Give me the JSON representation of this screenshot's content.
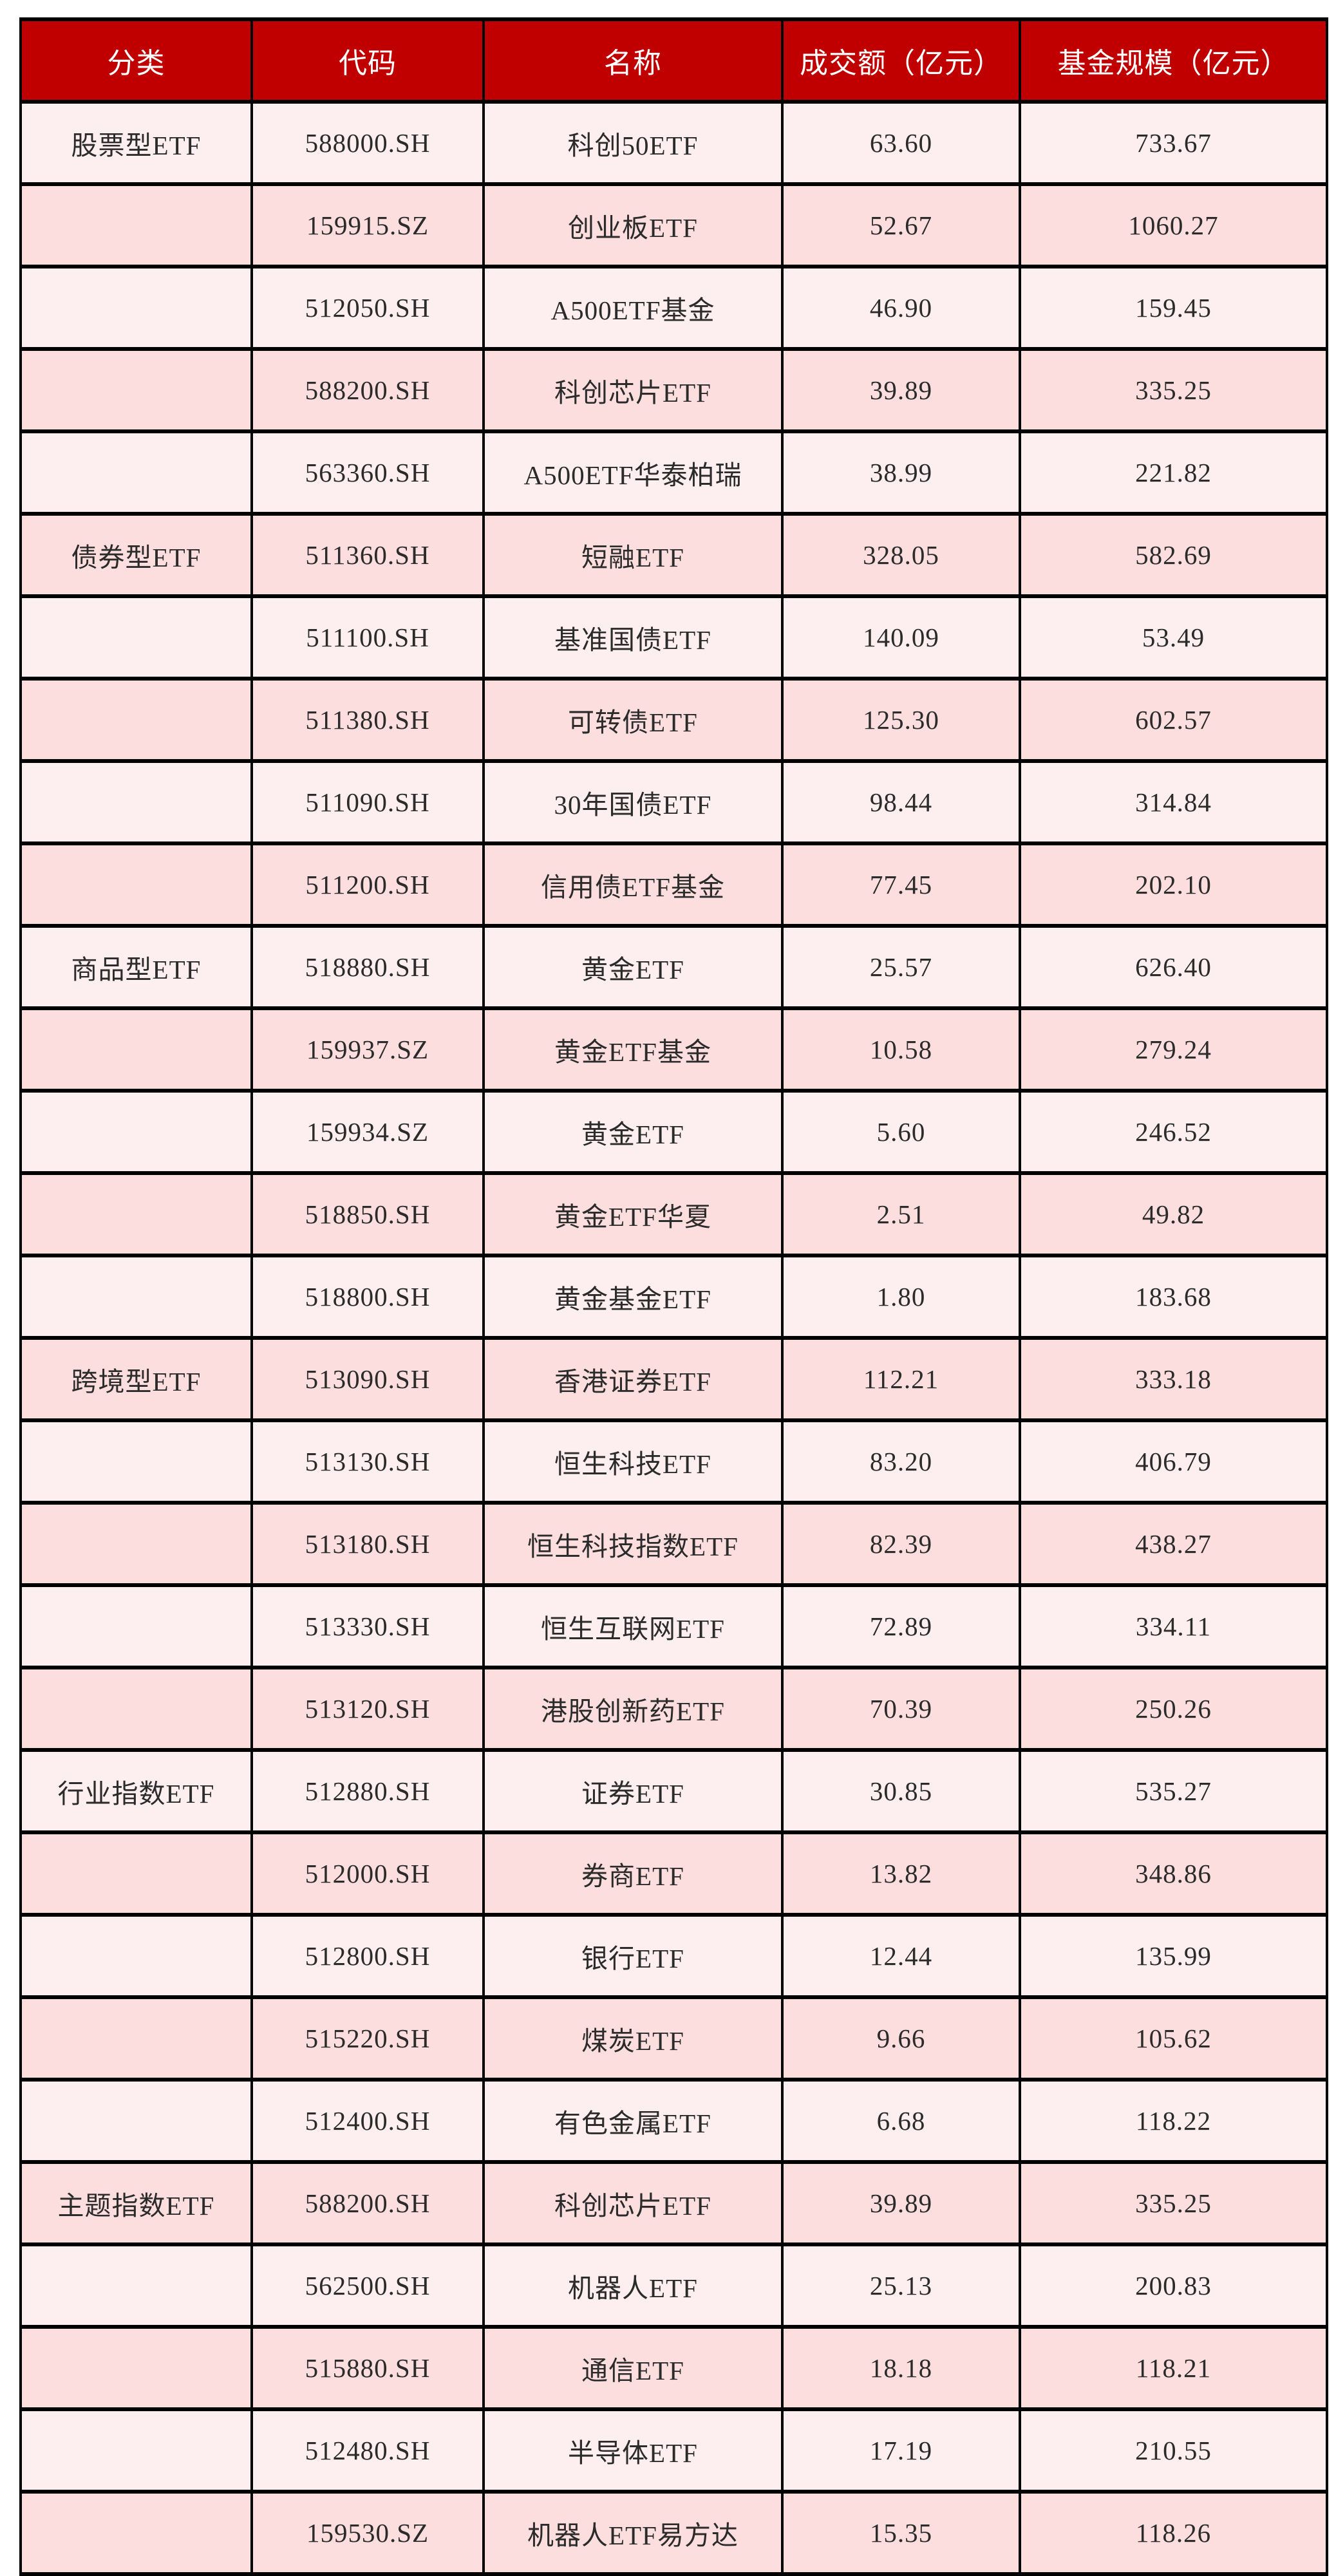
{
  "colors": {
    "header_bg": "#c00000",
    "header_text": "#ffffff",
    "row_light": "#fdefef",
    "row_dark": "#fcdede",
    "border": "#000000",
    "body_text": "#2b2b2b"
  },
  "chart_data": {
    "type": "table",
    "title": "",
    "columns": [
      "分类",
      "代码",
      "名称",
      "成交额（亿元）",
      "基金规模（亿元）"
    ],
    "rows": [
      [
        "股票型ETF",
        "588000.SH",
        "科创50ETF",
        "63.60",
        "733.67"
      ],
      [
        "",
        "159915.SZ",
        "创业板ETF",
        "52.67",
        "1060.27"
      ],
      [
        "",
        "512050.SH",
        "A500ETF基金",
        "46.90",
        "159.45"
      ],
      [
        "",
        "588200.SH",
        "科创芯片ETF",
        "39.89",
        "335.25"
      ],
      [
        "",
        "563360.SH",
        "A500ETF华泰柏瑞",
        "38.99",
        "221.82"
      ],
      [
        "债券型ETF",
        "511360.SH",
        "短融ETF",
        "328.05",
        "582.69"
      ],
      [
        "",
        "511100.SH",
        "基准国债ETF",
        "140.09",
        "53.49"
      ],
      [
        "",
        "511380.SH",
        "可转债ETF",
        "125.30",
        "602.57"
      ],
      [
        "",
        "511090.SH",
        "30年国债ETF",
        "98.44",
        "314.84"
      ],
      [
        "",
        "511200.SH",
        "信用债ETF基金",
        "77.45",
        "202.10"
      ],
      [
        "商品型ETF",
        "518880.SH",
        "黄金ETF",
        "25.57",
        "626.40"
      ],
      [
        "",
        "159937.SZ",
        "黄金ETF基金",
        "10.58",
        "279.24"
      ],
      [
        "",
        "159934.SZ",
        "黄金ETF",
        "5.60",
        "246.52"
      ],
      [
        "",
        "518850.SH",
        "黄金ETF华夏",
        "2.51",
        "49.82"
      ],
      [
        "",
        "518800.SH",
        "黄金基金ETF",
        "1.80",
        "183.68"
      ],
      [
        "跨境型ETF",
        "513090.SH",
        "香港证券ETF",
        "112.21",
        "333.18"
      ],
      [
        "",
        "513130.SH",
        "恒生科技ETF",
        "83.20",
        "406.79"
      ],
      [
        "",
        "513180.SH",
        "恒生科技指数ETF",
        "82.39",
        "438.27"
      ],
      [
        "",
        "513330.SH",
        "恒生互联网ETF",
        "72.89",
        "334.11"
      ],
      [
        "",
        "513120.SH",
        "港股创新药ETF",
        "70.39",
        "250.26"
      ],
      [
        "行业指数ETF",
        "512880.SH",
        "证券ETF",
        "30.85",
        "535.27"
      ],
      [
        "",
        "512000.SH",
        "券商ETF",
        "13.82",
        "348.86"
      ],
      [
        "",
        "512800.SH",
        "银行ETF",
        "12.44",
        "135.99"
      ],
      [
        "",
        "515220.SH",
        "煤炭ETF",
        "9.66",
        "105.62"
      ],
      [
        "",
        "512400.SH",
        "有色金属ETF",
        "6.68",
        "118.22"
      ],
      [
        "主题指数ETF",
        "588200.SH",
        "科创芯片ETF",
        "39.89",
        "335.25"
      ],
      [
        "",
        "562500.SH",
        "机器人ETF",
        "25.13",
        "200.83"
      ],
      [
        "",
        "515880.SH",
        "通信ETF",
        "18.18",
        "118.21"
      ],
      [
        "",
        "512480.SH",
        "半导体ETF",
        "17.19",
        "210.55"
      ],
      [
        "",
        "159530.SZ",
        "机器人ETF易方达",
        "15.35",
        "118.26"
      ]
    ],
    "legend": [],
    "notes": "zebra striping: odd rows light pink, even rows darker pink; category label only on first row of each 5-row group"
  }
}
